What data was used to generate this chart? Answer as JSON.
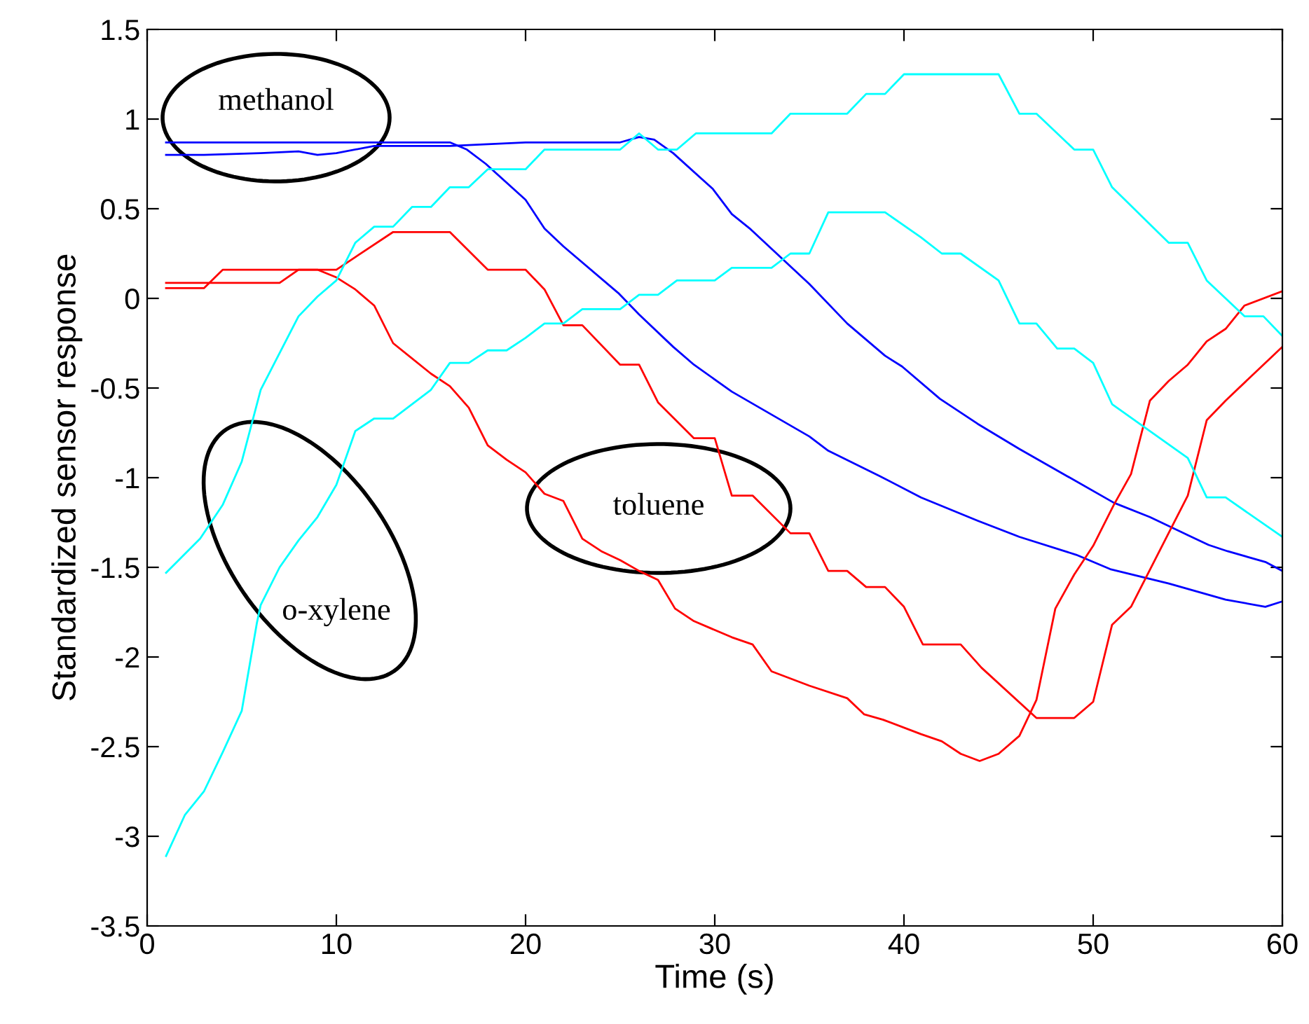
{
  "chart_data": {
    "type": "line",
    "xlabel": "Time (s)",
    "ylabel": "Standardized sensor response",
    "xlim": [
      0,
      60
    ],
    "xticks": [
      0,
      10,
      20,
      30,
      40,
      50,
      60
    ],
    "ylim": [
      -3.5,
      1.5
    ],
    "yticks": [
      -3.5,
      -3,
      -2.5,
      -2,
      -1.5,
      -1,
      -0.5,
      0,
      0.5,
      1,
      1.5
    ],
    "grid": false,
    "legend": false,
    "marker": "none",
    "line_style": "solid",
    "series": [
      {
        "color": "#0000ff",
        "x": [
          1,
          16,
          16.9,
          17.9,
          20,
          21,
          22,
          24.9,
          26,
          27.8,
          28.9,
          30.9,
          35,
          36,
          38.7,
          40.9,
          43.9,
          46.1,
          49.1,
          50.9,
          54,
          57,
          59.1,
          60
        ],
        "values": [
          0.87,
          0.87,
          0.83,
          0.75,
          0.55,
          0.39,
          0.29,
          0.03,
          -0.09,
          -0.27,
          -0.37,
          -0.52,
          -0.77,
          -0.85,
          -0.99,
          -1.11,
          -1.24,
          -1.33,
          -1.43,
          -1.51,
          -1.59,
          -1.68,
          -1.72,
          -1.69
        ]
      },
      {
        "color": "#0000ff",
        "x": [
          1,
          3,
          6,
          8,
          9,
          10,
          12,
          16,
          20,
          25,
          26,
          26.8,
          27.8,
          29.9,
          30.9,
          31.9,
          35,
          37,
          39,
          39.9,
          41.9,
          43.9,
          46.1,
          48.6,
          51.1,
          53,
          55,
          56.1,
          57.1,
          59.1,
          60
        ],
        "values": [
          0.8,
          0.8,
          0.81,
          0.82,
          0.8,
          0.81,
          0.85,
          0.85,
          0.87,
          0.87,
          0.9,
          0.885,
          0.81,
          0.61,
          0.47,
          0.385,
          0.08,
          -0.14,
          -0.32,
          -0.38,
          -0.56,
          -0.7,
          -0.84,
          -0.99,
          -1.14,
          -1.22,
          -1.32,
          -1.375,
          -1.41,
          -1.47,
          -1.52
        ]
      },
      {
        "color": "#ff0000",
        "x": [
          1,
          3,
          4,
          10,
          13,
          16,
          18,
          20,
          21,
          22,
          23,
          25,
          26,
          27,
          28.9,
          30,
          30.9,
          32,
          34,
          35,
          36,
          37,
          38,
          39,
          40,
          41,
          43,
          44.1,
          47,
          49,
          50,
          51,
          52,
          55,
          56,
          57,
          60
        ],
        "values": [
          0.057,
          0.057,
          0.16,
          0.16,
          0.37,
          0.37,
          0.16,
          0.16,
          0.05,
          -0.15,
          -0.15,
          -0.37,
          -0.37,
          -0.58,
          -0.78,
          -0.78,
          -1.1,
          -1.1,
          -1.31,
          -1.31,
          -1.52,
          -1.52,
          -1.61,
          -1.61,
          -1.72,
          -1.93,
          -1.93,
          -2.06,
          -2.34,
          -2.34,
          -2.25,
          -1.82,
          -1.72,
          -1.1,
          -0.68,
          -0.57,
          -0.27
        ]
      },
      {
        "color": "#ff0000",
        "x": [
          1,
          7,
          8,
          9,
          10,
          11,
          12,
          13,
          15,
          16,
          17,
          18,
          19,
          20,
          21,
          22,
          23,
          24,
          25,
          26,
          27,
          27.9,
          28.9,
          30.9,
          32,
          33,
          34,
          35,
          37,
          37.9,
          38.9,
          40.9,
          42,
          43,
          44,
          45,
          46.1,
          47,
          48,
          49,
          50,
          51.1,
          52,
          53,
          54,
          55,
          56,
          57,
          58,
          60
        ],
        "values": [
          0.086,
          0.086,
          0.16,
          0.16,
          0.117,
          0.05,
          -0.04,
          -0.25,
          -0.42,
          -0.49,
          -0.61,
          -0.82,
          -0.9,
          -0.97,
          -1.09,
          -1.13,
          -1.34,
          -1.41,
          -1.46,
          -1.52,
          -1.57,
          -1.73,
          -1.8,
          -1.89,
          -1.93,
          -2.08,
          -2.12,
          -2.16,
          -2.23,
          -2.32,
          -2.35,
          -2.43,
          -2.47,
          -2.54,
          -2.58,
          -2.54,
          -2.44,
          -2.24,
          -1.73,
          -1.54,
          -1.38,
          -1.15,
          -0.98,
          -0.57,
          -0.46,
          -0.37,
          -0.24,
          -0.17,
          -0.04,
          0.04
        ]
      },
      {
        "color": "#00ffff",
        "x": [
          1,
          2,
          3,
          4,
          5,
          5.8,
          6,
          7,
          8,
          9,
          10,
          10.3,
          11,
          12,
          13,
          15,
          16,
          17,
          18,
          19,
          20,
          21,
          22,
          23,
          25,
          26,
          27,
          28,
          30,
          30.9,
          33,
          34,
          35,
          36,
          39,
          40.9,
          42,
          43,
          45,
          46.1,
          47,
          48.1,
          49,
          50,
          51,
          55,
          56,
          57,
          60
        ],
        "values": [
          -3.11,
          -2.88,
          -2.75,
          -2.53,
          -2.3,
          -1.81,
          -1.71,
          -1.5,
          -1.35,
          -1.22,
          -1.04,
          -0.95,
          -0.74,
          -0.67,
          -0.67,
          -0.51,
          -0.36,
          -0.36,
          -0.29,
          -0.29,
          -0.22,
          -0.14,
          -0.14,
          -0.06,
          -0.06,
          0.02,
          0.02,
          0.1,
          0.1,
          0.17,
          0.17,
          0.25,
          0.25,
          0.48,
          0.48,
          0.34,
          0.25,
          0.25,
          0.1,
          -0.14,
          -0.14,
          -0.28,
          -0.28,
          -0.36,
          -0.59,
          -0.89,
          -1.11,
          -1.11,
          -1.33
        ]
      },
      {
        "color": "#00ffff",
        "x": [
          1,
          2.8,
          4,
          5,
          6,
          8,
          9,
          10,
          11,
          12,
          13,
          14,
          15,
          16,
          17,
          18,
          20,
          21,
          25,
          26,
          27,
          28,
          29,
          33,
          34,
          37,
          38,
          39,
          40,
          45,
          46.1,
          47,
          49,
          50,
          51,
          54,
          55,
          56,
          58,
          59,
          60
        ],
        "values": [
          -1.53,
          -1.34,
          -1.15,
          -0.91,
          -0.51,
          -0.1,
          0.01,
          0.1,
          0.31,
          0.4,
          0.4,
          0.51,
          0.51,
          0.62,
          0.62,
          0.72,
          0.72,
          0.83,
          0.83,
          0.92,
          0.83,
          0.83,
          0.92,
          0.92,
          1.03,
          1.03,
          1.14,
          1.14,
          1.25,
          1.25,
          1.03,
          1.03,
          0.83,
          0.83,
          0.62,
          0.31,
          0.31,
          0.1,
          -0.1,
          -0.1,
          -0.21
        ]
      }
    ],
    "annotations": [
      "methanol",
      "o-xylene",
      "toluene"
    ]
  }
}
